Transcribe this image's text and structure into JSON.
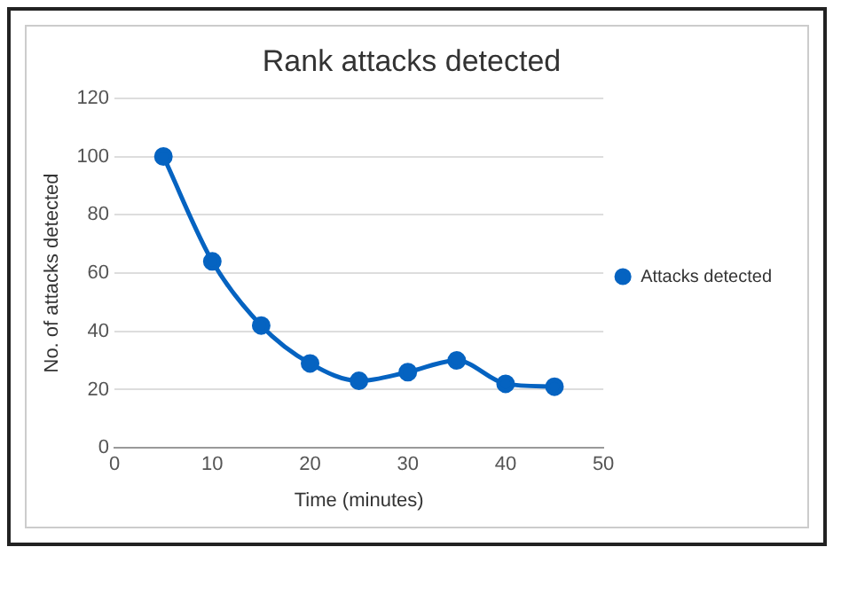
{
  "chart_data": {
    "type": "line",
    "title": "Rank attacks detected",
    "xlabel": "Time (minutes)",
    "ylabel": "No. of attacks detected",
    "x": [
      5,
      10,
      15,
      20,
      25,
      30,
      35,
      40,
      45
    ],
    "series": [
      {
        "name": "Attacks detected",
        "color": "#0563c1",
        "values": [
          100,
          64,
          42,
          29,
          23,
          26,
          30,
          22,
          21
        ]
      }
    ],
    "xlim": [
      0,
      50
    ],
    "xticks": [
      0,
      10,
      20,
      30,
      40,
      50
    ],
    "ylim": [
      0,
      120
    ],
    "yticks": [
      0,
      20,
      40,
      60,
      80,
      100,
      120
    ],
    "grid": "y",
    "legend": "right",
    "marker": "circle",
    "line_style": "solid"
  }
}
